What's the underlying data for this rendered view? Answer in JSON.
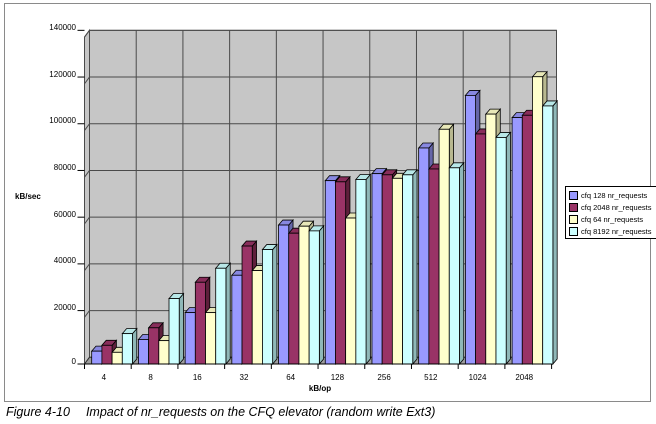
{
  "figure": {
    "caption_label": "Figure 4-10",
    "caption_text": "Impact of nr_requests on the CFQ elevator (random write Ext3)"
  },
  "chart_data": {
    "type": "bar",
    "title": "",
    "xlabel": "kB/op",
    "ylabel": "kB/sec",
    "ylim": [
      0,
      140000
    ],
    "ytick_step": 20000,
    "ytick_labels": [
      "0",
      "20000",
      "40000",
      "60000",
      "80000",
      "100000",
      "120000",
      "140000"
    ],
    "categories": [
      "4",
      "8",
      "16",
      "32",
      "64",
      "128",
      "256",
      "512",
      "1024",
      "2048"
    ],
    "series": [
      {
        "name": "cfq 128 nr_requests",
        "color": "#9999FF",
        "color_top": "#8888E0",
        "color_side": "#6666A8",
        "values": [
          5500,
          10500,
          22000,
          38000,
          59500,
          78500,
          81500,
          92500,
          115000,
          105500
        ]
      },
      {
        "name": "cfq 2048 nr_requests",
        "color": "#993366",
        "color_top": "#882D5A",
        "color_side": "#5E1F3B",
        "values": [
          8000,
          15500,
          35000,
          50500,
          56000,
          78000,
          81000,
          83500,
          98500,
          106500
        ]
      },
      {
        "name": "cfq 64 nr_requests",
        "color": "#FFFFCC",
        "color_top": "#E8E8B8",
        "color_side": "#B8B890",
        "values": [
          5000,
          10000,
          22000,
          40000,
          59000,
          62500,
          79500,
          100500,
          107000,
          123000
        ]
      },
      {
        "name": "cfq 8192 nr_requests",
        "color": "#CCFFFF",
        "color_top": "#B8E8E8",
        "color_side": "#8FB8B8",
        "values": [
          13000,
          28000,
          41000,
          49000,
          57000,
          79000,
          81000,
          84000,
          97000,
          110500
        ]
      }
    ],
    "legend_position": "right",
    "grid": true,
    "plot_bg": "#C6C6C6",
    "floor_color": "#9E9E9E",
    "gridline_color": "#4a4a4a",
    "border_color": "#000000"
  }
}
